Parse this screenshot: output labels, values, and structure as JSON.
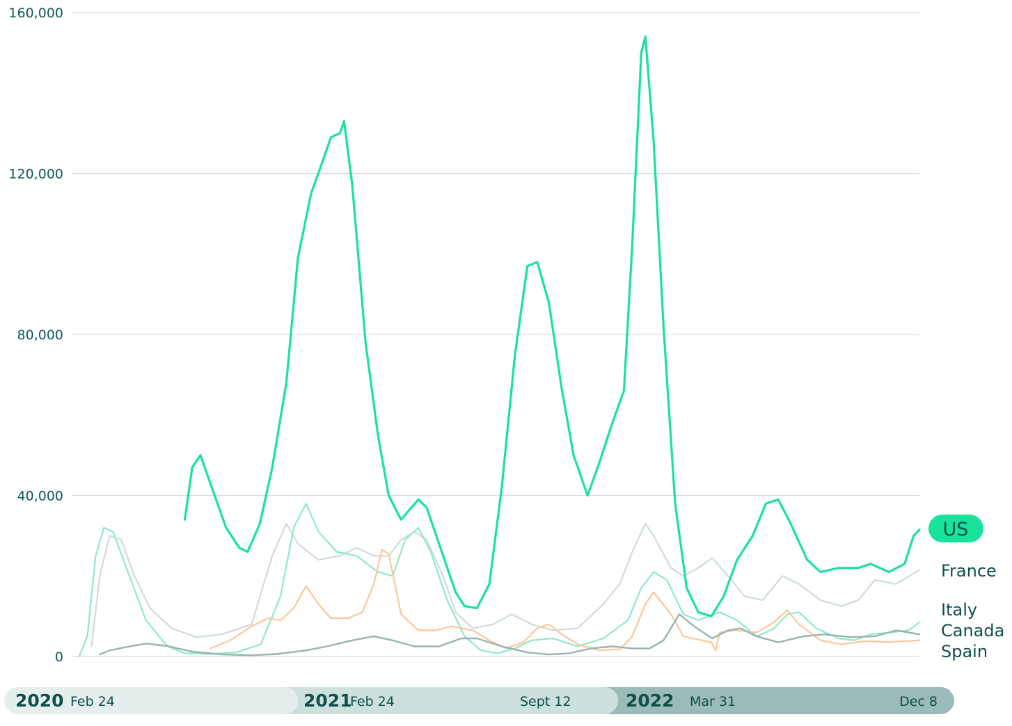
{
  "chart_data": {
    "type": "line",
    "y_ticks": [
      "0",
      "40,000",
      "80,000",
      "120,000",
      "160,000"
    ],
    "ylim": [
      0,
      160000
    ],
    "x_range": [
      "2020-02-15",
      "2022-12-08"
    ],
    "grid": "horizontal",
    "legend_placement": "right-end-labels",
    "series": [
      {
        "name": "US",
        "color": "#19e39b",
        "width": 3.2,
        "highlight": true,
        "points": [
          [
            "2020-07-01",
            34000
          ],
          [
            "2020-07-10",
            47000
          ],
          [
            "2020-07-20",
            50000
          ],
          [
            "2020-08-01",
            43000
          ],
          [
            "2020-08-20",
            32000
          ],
          [
            "2020-09-05",
            27000
          ],
          [
            "2020-09-15",
            26000
          ],
          [
            "2020-09-30",
            33000
          ],
          [
            "2020-10-15",
            47000
          ],
          [
            "2020-11-01",
            68000
          ],
          [
            "2020-11-15",
            99000
          ],
          [
            "2020-12-01",
            115000
          ],
          [
            "2020-12-15",
            123000
          ],
          [
            "2020-12-25",
            129000
          ],
          [
            "2021-01-05",
            130000
          ],
          [
            "2021-01-10",
            133000
          ],
          [
            "2021-01-20",
            117000
          ],
          [
            "2021-02-05",
            78000
          ],
          [
            "2021-02-20",
            55000
          ],
          [
            "2021-03-05",
            40000
          ],
          [
            "2021-03-20",
            34000
          ],
          [
            "2021-04-10",
            39000
          ],
          [
            "2021-04-20",
            37000
          ],
          [
            "2021-05-10",
            25000
          ],
          [
            "2021-05-25",
            16000
          ],
          [
            "2021-06-05",
            12500
          ],
          [
            "2021-06-20",
            12000
          ],
          [
            "2021-07-05",
            18000
          ],
          [
            "2021-07-20",
            42000
          ],
          [
            "2021-08-05",
            75000
          ],
          [
            "2021-08-20",
            97000
          ],
          [
            "2021-09-01",
            98000
          ],
          [
            "2021-09-15",
            88000
          ],
          [
            "2021-10-01",
            66000
          ],
          [
            "2021-10-15",
            50000
          ],
          [
            "2021-11-01",
            40000
          ],
          [
            "2021-11-15",
            48000
          ],
          [
            "2021-12-01",
            58000
          ],
          [
            "2021-12-15",
            66000
          ],
          [
            "2021-12-25",
            102000
          ],
          [
            "2022-01-05",
            150000
          ],
          [
            "2022-01-10",
            154000
          ],
          [
            "2022-01-20",
            128000
          ],
          [
            "2022-02-01",
            82000
          ],
          [
            "2022-02-15",
            38000
          ],
          [
            "2022-03-01",
            17000
          ],
          [
            "2022-03-15",
            11000
          ],
          [
            "2022-03-31",
            10000
          ],
          [
            "2022-04-15",
            15000
          ],
          [
            "2022-05-01",
            24000
          ],
          [
            "2022-05-20",
            30000
          ],
          [
            "2022-06-05",
            38000
          ],
          [
            "2022-06-20",
            39000
          ],
          [
            "2022-07-05",
            33000
          ],
          [
            "2022-07-25",
            24000
          ],
          [
            "2022-08-10",
            21000
          ],
          [
            "2022-09-01",
            22000
          ],
          [
            "2022-09-12",
            22000
          ],
          [
            "2022-09-25",
            22000
          ],
          [
            "2022-10-10",
            23000
          ],
          [
            "2022-11-01",
            21000
          ],
          [
            "2022-11-20",
            23000
          ],
          [
            "2022-12-01",
            30000
          ],
          [
            "2022-12-08",
            31500
          ]
        ]
      },
      {
        "name": "France",
        "color": "#cfdcd9",
        "width": 2.2,
        "highlight": false,
        "points": [
          [
            "2020-03-10",
            2500
          ],
          [
            "2020-03-20",
            20000
          ],
          [
            "2020-04-01",
            30000
          ],
          [
            "2020-04-15",
            29000
          ],
          [
            "2020-05-01",
            20000
          ],
          [
            "2020-05-20",
            12000
          ],
          [
            "2020-06-15",
            7000
          ],
          [
            "2020-07-15",
            4800
          ],
          [
            "2020-08-15",
            5500
          ],
          [
            "2020-09-20",
            8000
          ],
          [
            "2020-10-15",
            25000
          ],
          [
            "2020-11-01",
            33000
          ],
          [
            "2020-11-15",
            28000
          ],
          [
            "2020-12-10",
            24000
          ],
          [
            "2021-01-05",
            25000
          ],
          [
            "2021-01-25",
            27000
          ],
          [
            "2021-02-15",
            25000
          ],
          [
            "2021-03-05",
            25000
          ],
          [
            "2021-03-20",
            29000
          ],
          [
            "2021-04-05",
            31000
          ],
          [
            "2021-04-20",
            29000
          ],
          [
            "2021-05-10",
            20000
          ],
          [
            "2021-05-25",
            11000
          ],
          [
            "2021-06-15",
            7000
          ],
          [
            "2021-07-10",
            8000
          ],
          [
            "2021-08-01",
            10500
          ],
          [
            "2021-08-25",
            8000
          ],
          [
            "2021-09-20",
            6500
          ],
          [
            "2021-10-20",
            7000
          ],
          [
            "2021-11-20",
            13000
          ],
          [
            "2021-12-10",
            18000
          ],
          [
            "2021-12-25",
            26000
          ],
          [
            "2022-01-10",
            33000
          ],
          [
            "2022-01-20",
            30000
          ],
          [
            "2022-02-10",
            22000
          ],
          [
            "2022-02-25",
            20000
          ],
          [
            "2022-03-15",
            22000
          ],
          [
            "2022-04-01",
            24500
          ],
          [
            "2022-04-20",
            20000
          ],
          [
            "2022-05-10",
            15000
          ],
          [
            "2022-06-01",
            14000
          ],
          [
            "2022-06-25",
            20000
          ],
          [
            "2022-07-15",
            18000
          ],
          [
            "2022-08-10",
            14000
          ],
          [
            "2022-09-05",
            12500
          ],
          [
            "2022-09-25",
            14000
          ],
          [
            "2022-10-15",
            19000
          ],
          [
            "2022-11-10",
            18000
          ],
          [
            "2022-12-08",
            21500
          ]
        ]
      },
      {
        "name": "Italy",
        "color": "#8eeac6",
        "width": 2.2,
        "highlight": false,
        "points": [
          [
            "2020-02-24",
            0
          ],
          [
            "2020-03-05",
            5000
          ],
          [
            "2020-03-15",
            25000
          ],
          [
            "2020-03-25",
            32000
          ],
          [
            "2020-04-05",
            31000
          ],
          [
            "2020-04-25",
            20000
          ],
          [
            "2020-05-15",
            9000
          ],
          [
            "2020-06-10",
            2500
          ],
          [
            "2020-07-01",
            800
          ],
          [
            "2020-08-01",
            600
          ],
          [
            "2020-09-01",
            1000
          ],
          [
            "2020-10-01",
            3000
          ],
          [
            "2020-10-25",
            15000
          ],
          [
            "2020-11-10",
            32000
          ],
          [
            "2020-11-25",
            38000
          ],
          [
            "2020-12-10",
            31000
          ],
          [
            "2021-01-01",
            26000
          ],
          [
            "2021-01-25",
            25000
          ],
          [
            "2021-02-20",
            21000
          ],
          [
            "2021-03-10",
            20000
          ],
          [
            "2021-03-25",
            29000
          ],
          [
            "2021-04-10",
            32000
          ],
          [
            "2021-04-25",
            26000
          ],
          [
            "2021-05-15",
            14000
          ],
          [
            "2021-06-05",
            5000
          ],
          [
            "2021-06-25",
            1500
          ],
          [
            "2021-07-15",
            800
          ],
          [
            "2021-08-05",
            2000
          ],
          [
            "2021-08-25",
            4000
          ],
          [
            "2021-09-20",
            4500
          ],
          [
            "2021-10-20",
            2500
          ],
          [
            "2021-11-20",
            4500
          ],
          [
            "2021-12-20",
            9000
          ],
          [
            "2022-01-05",
            17000
          ],
          [
            "2022-01-20",
            21000
          ],
          [
            "2022-02-05",
            19000
          ],
          [
            "2022-02-25",
            10500
          ],
          [
            "2022-03-15",
            9000
          ],
          [
            "2022-04-10",
            11000
          ],
          [
            "2022-05-01",
            9000
          ],
          [
            "2022-05-25",
            5000
          ],
          [
            "2022-06-15",
            7000
          ],
          [
            "2022-07-01",
            10500
          ],
          [
            "2022-07-15",
            11000
          ],
          [
            "2022-08-05",
            7000
          ],
          [
            "2022-09-01",
            4500
          ],
          [
            "2022-09-20",
            4000
          ],
          [
            "2022-10-10",
            5500
          ],
          [
            "2022-11-05",
            6000
          ],
          [
            "2022-11-25",
            6500
          ],
          [
            "2022-12-08",
            8500
          ]
        ]
      },
      {
        "name": "Canada",
        "color": "#fbc79a",
        "width": 2.2,
        "highlight": false,
        "points": [
          [
            "2020-08-01",
            2000
          ],
          [
            "2020-08-25",
            4000
          ],
          [
            "2020-09-20",
            7500
          ],
          [
            "2020-10-10",
            9500
          ],
          [
            "2020-10-25",
            9000
          ],
          [
            "2020-11-10",
            12000
          ],
          [
            "2020-11-25",
            17500
          ],
          [
            "2020-12-10",
            13000
          ],
          [
            "2020-12-25",
            9500
          ],
          [
            "2021-01-15",
            9500
          ],
          [
            "2021-02-01",
            11000
          ],
          [
            "2021-02-15",
            18000
          ],
          [
            "2021-02-25",
            26500
          ],
          [
            "2021-03-05",
            25500
          ],
          [
            "2021-03-20",
            10500
          ],
          [
            "2021-04-10",
            6500
          ],
          [
            "2021-05-01",
            6500
          ],
          [
            "2021-05-20",
            7500
          ],
          [
            "2021-06-15",
            6500
          ],
          [
            "2021-07-05",
            4000
          ],
          [
            "2021-07-25",
            2000
          ],
          [
            "2021-08-15",
            3500
          ],
          [
            "2021-09-01",
            7000
          ],
          [
            "2021-09-15",
            8000
          ],
          [
            "2021-10-01",
            5500
          ],
          [
            "2021-10-20",
            3000
          ],
          [
            "2021-11-15",
            1500
          ],
          [
            "2021-12-10",
            1800
          ],
          [
            "2021-12-25",
            5000
          ],
          [
            "2022-01-10",
            13000
          ],
          [
            "2022-01-20",
            16000
          ],
          [
            "2022-02-10",
            10500
          ],
          [
            "2022-02-25",
            5000
          ],
          [
            "2022-03-20",
            4000
          ],
          [
            "2022-03-31",
            3500
          ],
          [
            "2022-04-05",
            1500
          ],
          [
            "2022-04-10",
            6000
          ],
          [
            "2022-05-01",
            6500
          ],
          [
            "2022-05-25",
            6000
          ],
          [
            "2022-06-15",
            8500
          ],
          [
            "2022-07-01",
            11500
          ],
          [
            "2022-07-15",
            8000
          ],
          [
            "2022-08-10",
            4000
          ],
          [
            "2022-09-05",
            3000
          ],
          [
            "2022-10-01",
            3800
          ],
          [
            "2022-11-01",
            3600
          ],
          [
            "2022-12-08",
            4000
          ]
        ]
      },
      {
        "name": "Spain",
        "color": "#96b5b1",
        "width": 2.4,
        "highlight": false,
        "points": [
          [
            "2020-03-20",
            500
          ],
          [
            "2020-04-01",
            1500
          ],
          [
            "2020-04-20",
            2300
          ],
          [
            "2020-05-15",
            3200
          ],
          [
            "2020-06-10",
            2600
          ],
          [
            "2020-07-10",
            1200
          ],
          [
            "2020-08-15",
            500
          ],
          [
            "2020-09-20",
            300
          ],
          [
            "2020-10-20",
            600
          ],
          [
            "2020-11-25",
            1500
          ],
          [
            "2020-12-20",
            2500
          ],
          [
            "2021-01-20",
            4000
          ],
          [
            "2021-02-15",
            5000
          ],
          [
            "2021-03-10",
            4000
          ],
          [
            "2021-04-05",
            2500
          ],
          [
            "2021-05-05",
            2500
          ],
          [
            "2021-06-01",
            4500
          ],
          [
            "2021-06-20",
            4500
          ],
          [
            "2021-07-20",
            2500
          ],
          [
            "2021-08-20",
            1000
          ],
          [
            "2021-09-15",
            500
          ],
          [
            "2021-10-10",
            800
          ],
          [
            "2021-11-05",
            2000
          ],
          [
            "2021-12-01",
            2500
          ],
          [
            "2021-12-25",
            2000
          ],
          [
            "2022-01-15",
            2000
          ],
          [
            "2022-02-01",
            4000
          ],
          [
            "2022-02-20",
            10500
          ],
          [
            "2022-03-10",
            7500
          ],
          [
            "2022-04-01",
            4500
          ],
          [
            "2022-04-20",
            6500
          ],
          [
            "2022-05-05",
            7000
          ],
          [
            "2022-05-25",
            5000
          ],
          [
            "2022-06-20",
            3500
          ],
          [
            "2022-07-20",
            5000
          ],
          [
            "2022-08-15",
            5500
          ],
          [
            "2022-09-15",
            4800
          ],
          [
            "2022-10-15",
            5000
          ],
          [
            "2022-11-10",
            6500
          ],
          [
            "2022-12-08",
            5500
          ]
        ]
      }
    ],
    "labels": [
      "US",
      "France",
      "Italy",
      "Canada",
      "Spain"
    ]
  },
  "timeline": {
    "segments": [
      {
        "year": "2020",
        "dates": [
          "Feb 24"
        ],
        "color": "#e5eeed"
      },
      {
        "year": "2021",
        "dates": [
          "Feb 24",
          "Sept 12"
        ],
        "color": "#cde0de"
      },
      {
        "year": "2022",
        "dates": [
          "Mar 31",
          "Dec 8"
        ],
        "color": "#9abbb8"
      }
    ]
  }
}
